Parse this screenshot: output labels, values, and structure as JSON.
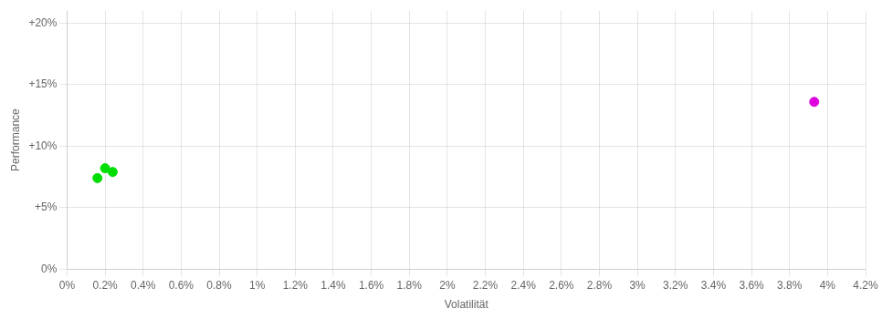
{
  "chart_data": {
    "type": "scatter",
    "xlabel": "Volatilität",
    "ylabel": "Performance",
    "xlim": [
      0.0,
      0.042
    ],
    "ylim": [
      0.0,
      0.21
    ],
    "xticks": [
      {
        "value": 0.0,
        "label": "0%"
      },
      {
        "value": 0.002,
        "label": "0.2%"
      },
      {
        "value": 0.004,
        "label": "0.4%"
      },
      {
        "value": 0.006,
        "label": "0.6%"
      },
      {
        "value": 0.008,
        "label": "0.8%"
      },
      {
        "value": 0.01,
        "label": "1%"
      },
      {
        "value": 0.012,
        "label": "1.2%"
      },
      {
        "value": 0.014,
        "label": "1.4%"
      },
      {
        "value": 0.016,
        "label": "1.6%"
      },
      {
        "value": 0.018,
        "label": "1.8%"
      },
      {
        "value": 0.02,
        "label": "2%"
      },
      {
        "value": 0.022,
        "label": "2.2%"
      },
      {
        "value": 0.024,
        "label": "2.4%"
      },
      {
        "value": 0.026,
        "label": "2.6%"
      },
      {
        "value": 0.028,
        "label": "2.8%"
      },
      {
        "value": 0.03,
        "label": "3%"
      },
      {
        "value": 0.032,
        "label": "3.2%"
      },
      {
        "value": 0.034,
        "label": "3.4%"
      },
      {
        "value": 0.036,
        "label": "3.6%"
      },
      {
        "value": 0.038,
        "label": "3.8%"
      },
      {
        "value": 0.04,
        "label": "4%"
      },
      {
        "value": 0.042,
        "label": "4.2%"
      }
    ],
    "yticks": [
      {
        "value": 0.0,
        "label": "0%"
      },
      {
        "value": 0.05,
        "label": "+5%"
      },
      {
        "value": 0.1,
        "label": "+10%"
      },
      {
        "value": 0.15,
        "label": "+15%"
      },
      {
        "value": 0.2,
        "label": "+20%"
      }
    ],
    "grid": true,
    "series": [
      {
        "color": "#00dd00",
        "x": [
          0.002,
          0.0024,
          0.0016
        ],
        "values": [
          0.082,
          0.079,
          0.074
        ]
      },
      {
        "color": "#dd00dd",
        "x": [
          0.0393
        ],
        "values": [
          0.136
        ]
      }
    ]
  }
}
